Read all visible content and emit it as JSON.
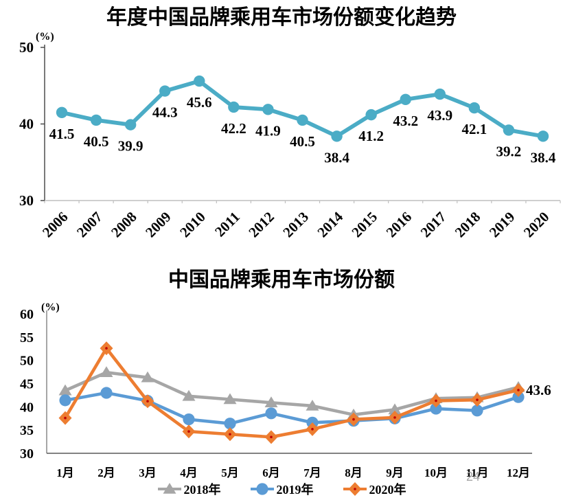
{
  "page": {
    "number": "24"
  },
  "chart_data": [
    {
      "type": "line",
      "title": "年度中国品牌乘用车市场份额变化趋势",
      "unit_label": "(%)",
      "categories": [
        "2006",
        "2007",
        "2008",
        "2009",
        "2010",
        "2011",
        "2012",
        "2013",
        "2014",
        "2015",
        "2016",
        "2017",
        "2018",
        "2019",
        "2020"
      ],
      "values": [
        41.5,
        40.5,
        39.9,
        44.3,
        45.6,
        42.2,
        41.9,
        40.5,
        38.4,
        41.2,
        43.2,
        43.9,
        42.1,
        39.2,
        38.4
      ],
      "series_color": "#4BACC6",
      "ylim": [
        30,
        50
      ],
      "yticks": [
        50,
        40,
        30
      ],
      "xlabel": "",
      "ylabel": "(%)",
      "grid": false,
      "data_labels": true,
      "legend_position": "none"
    },
    {
      "type": "line",
      "title": "中国品牌乘用车市场份额",
      "unit_label": "(%)",
      "categories": [
        "1月",
        "2月",
        "3月",
        "4月",
        "5月",
        "6月",
        "7月",
        "8月",
        "9月",
        "10月",
        "11月",
        "12月"
      ],
      "series": [
        {
          "name": "2018年",
          "color": "#A6A6A6",
          "marker": "triangle",
          "values": [
            43.5,
            47.4,
            46.3,
            42.3,
            41.6,
            40.9,
            40.2,
            38.3,
            39.4,
            41.8,
            42.0,
            44.2
          ]
        },
        {
          "name": "2019年",
          "color": "#5B9BD5",
          "marker": "circle",
          "values": [
            41.4,
            43.0,
            41.3,
            37.3,
            36.4,
            38.6,
            36.6,
            37.0,
            37.5,
            39.6,
            39.2,
            42.1
          ]
        },
        {
          "name": "2020年",
          "color": "#ED7D31",
          "marker": "diamond",
          "marker_dot_color": "#C00000",
          "values": [
            37.6,
            52.6,
            41.2,
            34.7,
            34.1,
            33.5,
            35.2,
            37.3,
            37.7,
            41.3,
            41.5,
            43.6
          ],
          "end_label": "43.6"
        }
      ],
      "ylim": [
        30,
        60
      ],
      "yticks": [
        60,
        55,
        50,
        45,
        40,
        35,
        30
      ],
      "grid": false,
      "data_labels": false,
      "legend_position": "bottom"
    }
  ]
}
